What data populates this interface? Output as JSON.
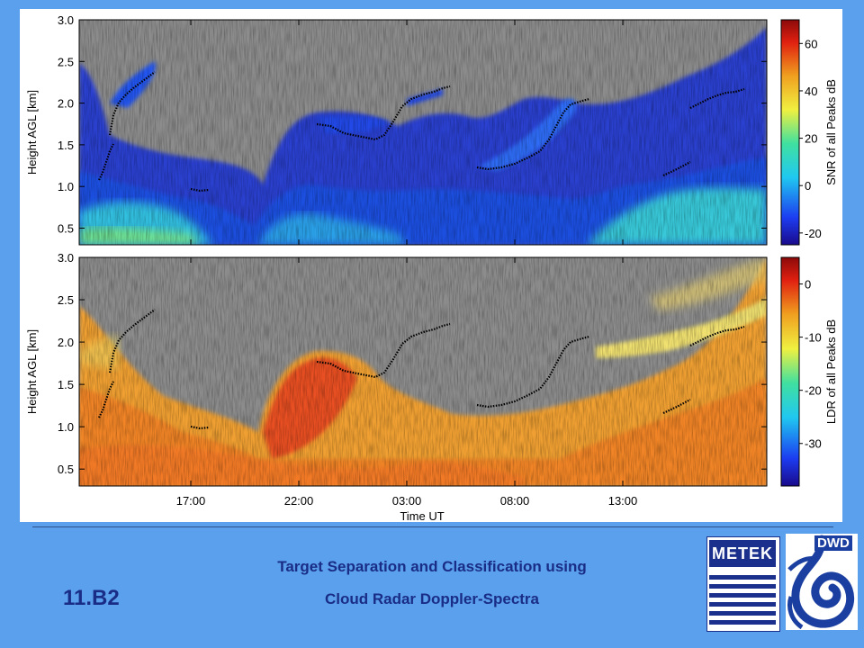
{
  "figure": {
    "xaxis_title": "Time UT",
    "colors": {
      "background": "#5aa0ec",
      "nodata": "#8c8c8c",
      "cloud_top_marks": "#000000"
    }
  },
  "chart_data": [
    {
      "type": "heatmap",
      "panel": "top",
      "title": "",
      "xlabel": "",
      "ylabel": "Height AGL [km]",
      "ylim": [
        0.3,
        3.0
      ],
      "y_ticks": [
        "0.5",
        "1.0",
        "1.5",
        "2.0",
        "2.5",
        "3.0"
      ],
      "x_ticks": [
        "17:00",
        "22:00",
        "03:00",
        "08:00",
        "13:00"
      ],
      "colorbar": {
        "label": "SNR of all Peaks dB",
        "range": [
          -25,
          70
        ],
        "ticks": [
          "-20",
          "0",
          "20",
          "40",
          "60"
        ],
        "colormap": "rainbow"
      },
      "grid": false
    },
    {
      "type": "heatmap",
      "panel": "bottom",
      "title": "",
      "xlabel": "Time UT",
      "ylabel": "Height AGL [km]",
      "ylim": [
        0.3,
        3.0
      ],
      "y_ticks": [
        "0.5",
        "1.0",
        "1.5",
        "2.0",
        "2.5",
        "3.0"
      ],
      "x_ticks": [
        "17:00",
        "22:00",
        "03:00",
        "08:00",
        "13:00"
      ],
      "colorbar": {
        "label": "LDR of all Peaks dB",
        "range": [
          -38,
          5
        ],
        "ticks": [
          "-30",
          "-20",
          "-10",
          "0"
        ],
        "colormap": "rainbow"
      },
      "grid": false
    }
  ],
  "captions": {
    "line1": "Target Separation and Classification using",
    "line2": "Cloud Radar Doppler-Spectra",
    "slide_id": "11.B2"
  },
  "logos": {
    "metek": "METEK",
    "dwd": "DWD"
  }
}
